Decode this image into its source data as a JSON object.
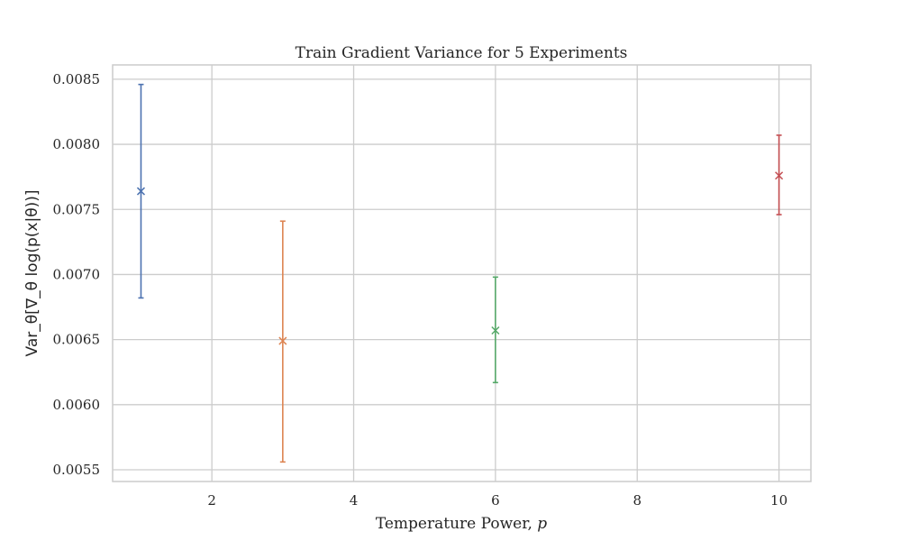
{
  "chart_data": {
    "type": "scatter",
    "title": "Train Gradient Variance for 5 Experiments",
    "xlabel": "Temperature Power, p",
    "xlabel_prefix": "Temperature Power, ",
    "xlabel_var": "p",
    "ylabel": "Var_θ[∇_θ log(p(x|θ))]",
    "xlim": [
      0.6,
      10.45
    ],
    "ylim": [
      0.00541,
      0.00861
    ],
    "x_ticks": [
      2,
      4,
      6,
      8,
      10
    ],
    "y_ticks": [
      0.0055,
      0.006,
      0.0065,
      0.007,
      0.0075,
      0.008,
      0.0085
    ],
    "y_tick_labels": [
      "0.0055",
      "0.0060",
      "0.0065",
      "0.0070",
      "0.0075",
      "0.0080",
      "0.0085"
    ],
    "grid": true,
    "marker": "x",
    "series": [
      {
        "x": 1,
        "y": 0.00764,
        "yerr_low": 0.00682,
        "yerr_high": 0.00846,
        "color": "#4c72b0"
      },
      {
        "x": 3,
        "y": 0.00649,
        "yerr_low": 0.00556,
        "yerr_high": 0.00741,
        "color": "#dd8452"
      },
      {
        "x": 6,
        "y": 0.00657,
        "yerr_low": 0.00617,
        "yerr_high": 0.00698,
        "color": "#55a868"
      },
      {
        "x": 10,
        "y": 0.00776,
        "yerr_low": 0.00746,
        "yerr_high": 0.00807,
        "color": "#c44e52"
      }
    ]
  }
}
